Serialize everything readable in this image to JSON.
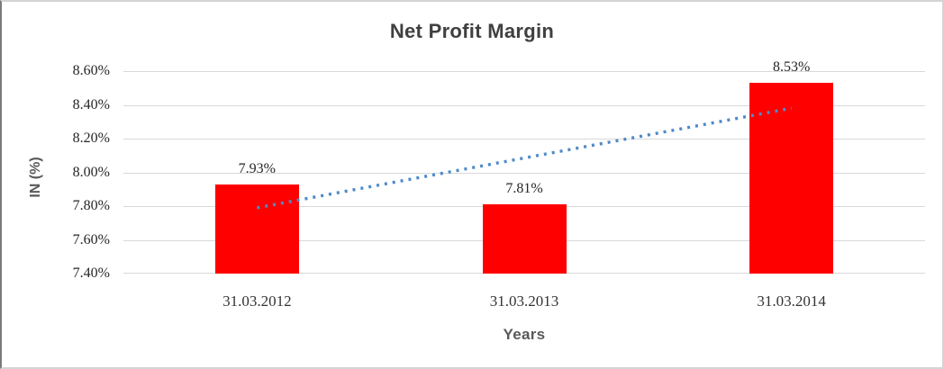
{
  "chart_data": {
    "type": "bar",
    "title": "Net Profit Margin",
    "xlabel": "Years",
    "ylabel": "IN (%)",
    "categories": [
      "31.03.2012",
      "31.03.2013",
      "31.03.2014"
    ],
    "values": [
      7.93,
      7.81,
      8.53
    ],
    "data_labels": [
      "7.93%",
      "7.81%",
      "8.53%"
    ],
    "ylim": [
      7.4,
      8.6
    ],
    "ytick_step": 0.2,
    "yticks": [
      {
        "value": 8.6,
        "label": "8.60%"
      },
      {
        "value": 8.4,
        "label": "8.40%"
      },
      {
        "value": 8.2,
        "label": "8.20%"
      },
      {
        "value": 8.0,
        "label": "8.00%"
      },
      {
        "value": 7.8,
        "label": "7.80%"
      },
      {
        "value": 7.6,
        "label": "7.60%"
      },
      {
        "value": 7.4,
        "label": "7.40%"
      }
    ],
    "grid": true,
    "legend": false,
    "bar_color": "#FF0000",
    "gridline_color": "#d9d9d9",
    "title_color": "#404040",
    "axis_title_color": "#595959",
    "tick_label_color": "#262626",
    "trendline": {
      "style": "dotted",
      "color": "#4E8AC8",
      "start_value": 7.79,
      "end_value": 8.38
    }
  }
}
